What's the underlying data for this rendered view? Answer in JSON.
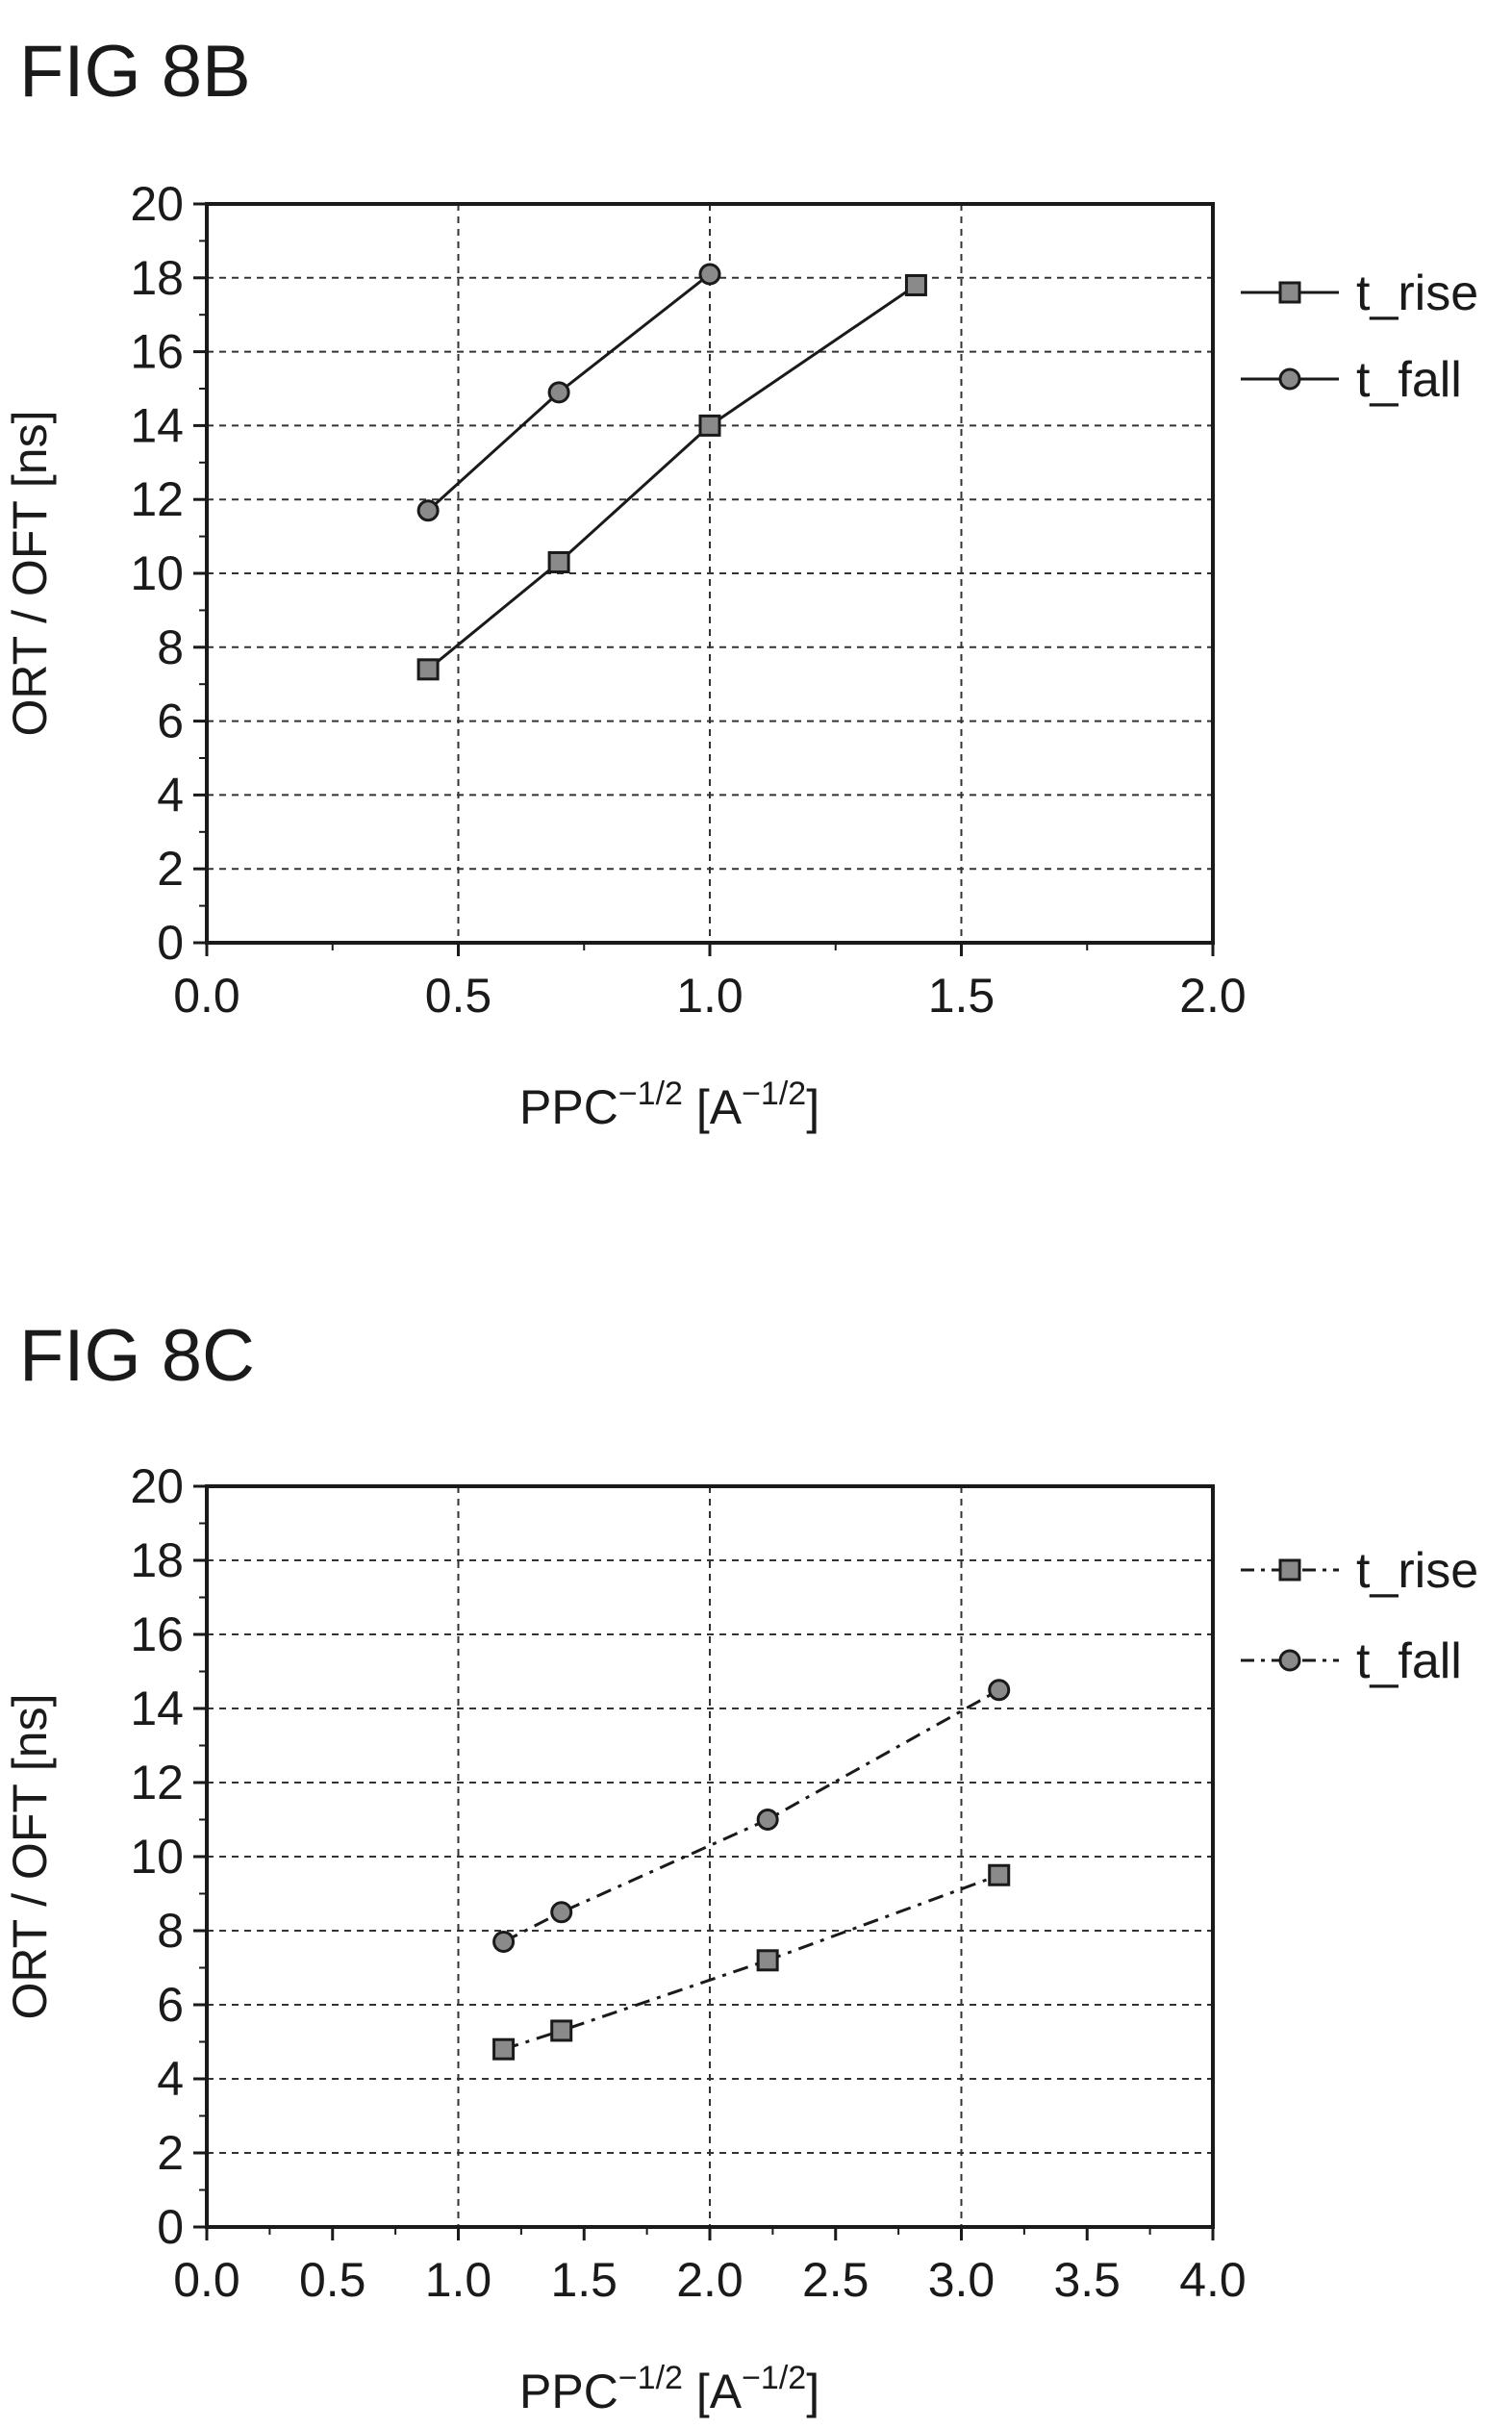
{
  "chart_data": [
    {
      "type": "line",
      "title": "FIG 8B",
      "xlabel": {
        "main": "PPC",
        "main_sup": "−1/2",
        "unit_base": "A",
        "unit_sup": "−1/2"
      },
      "ylabel": "ORT / OFT [ns]",
      "xlim": [
        0.0,
        2.0
      ],
      "ylim": [
        0,
        20
      ],
      "xticks": [
        0.0,
        0.5,
        1.0,
        1.5,
        2.0
      ],
      "xtick_labels": [
        "0.0",
        "0.5",
        "1.0",
        "1.5",
        "2.0"
      ],
      "yticks": [
        0,
        2,
        4,
        6,
        8,
        10,
        12,
        14,
        16,
        18,
        20
      ],
      "ytick_labels": [
        "0",
        "2",
        "4",
        "6",
        "8",
        "10",
        "12",
        "14",
        "16",
        "18",
        "20"
      ],
      "grid": true,
      "legend_position": "right",
      "line_style": "solid",
      "series": [
        {
          "name": "t_rise",
          "marker": "square",
          "x": [
            0.44,
            0.7,
            1.0,
            1.41
          ],
          "y": [
            7.4,
            10.3,
            14.0,
            17.8
          ]
        },
        {
          "name": "t_fall",
          "marker": "circle",
          "x": [
            0.44,
            0.7,
            1.0
          ],
          "y": [
            11.7,
            14.9,
            18.1
          ]
        }
      ]
    },
    {
      "type": "line",
      "title": "FIG 8C",
      "xlabel": {
        "main": "PPC",
        "main_sup": "−1/2",
        "unit_base": "A",
        "unit_sup": "−1/2"
      },
      "ylabel": "ORT / OFT [ns]",
      "xlim": [
        0.0,
        4.0
      ],
      "ylim": [
        0,
        20
      ],
      "xticks": [
        0.0,
        0.5,
        1.0,
        1.5,
        2.0,
        2.5,
        3.0,
        3.5,
        4.0
      ],
      "xtick_labels": [
        "0.0",
        "0.5",
        "1.0",
        "1.5",
        "2.0",
        "2.5",
        "3.0",
        "3.5",
        "4.0"
      ],
      "yticks": [
        0,
        2,
        4,
        6,
        8,
        10,
        12,
        14,
        16,
        18,
        20
      ],
      "ytick_labels": [
        "0",
        "2",
        "4",
        "6",
        "8",
        "10",
        "12",
        "14",
        "16",
        "18",
        "20"
      ],
      "grid": true,
      "legend_position": "right",
      "line_style": "dash-dot",
      "series": [
        {
          "name": "t_rise",
          "marker": "square",
          "x": [
            1.18,
            1.41,
            2.23,
            3.15
          ],
          "y": [
            4.8,
            5.3,
            7.2,
            9.5
          ]
        },
        {
          "name": "t_fall",
          "marker": "circle",
          "x": [
            1.18,
            1.41,
            2.23,
            3.15
          ],
          "y": [
            7.7,
            8.5,
            11.0,
            14.5
          ]
        }
      ]
    }
  ],
  "colors": {
    "ink": "#1a1a1a",
    "grid": "#333333",
    "marker_fill": "#8a8a8a",
    "background": "#ffffff"
  }
}
